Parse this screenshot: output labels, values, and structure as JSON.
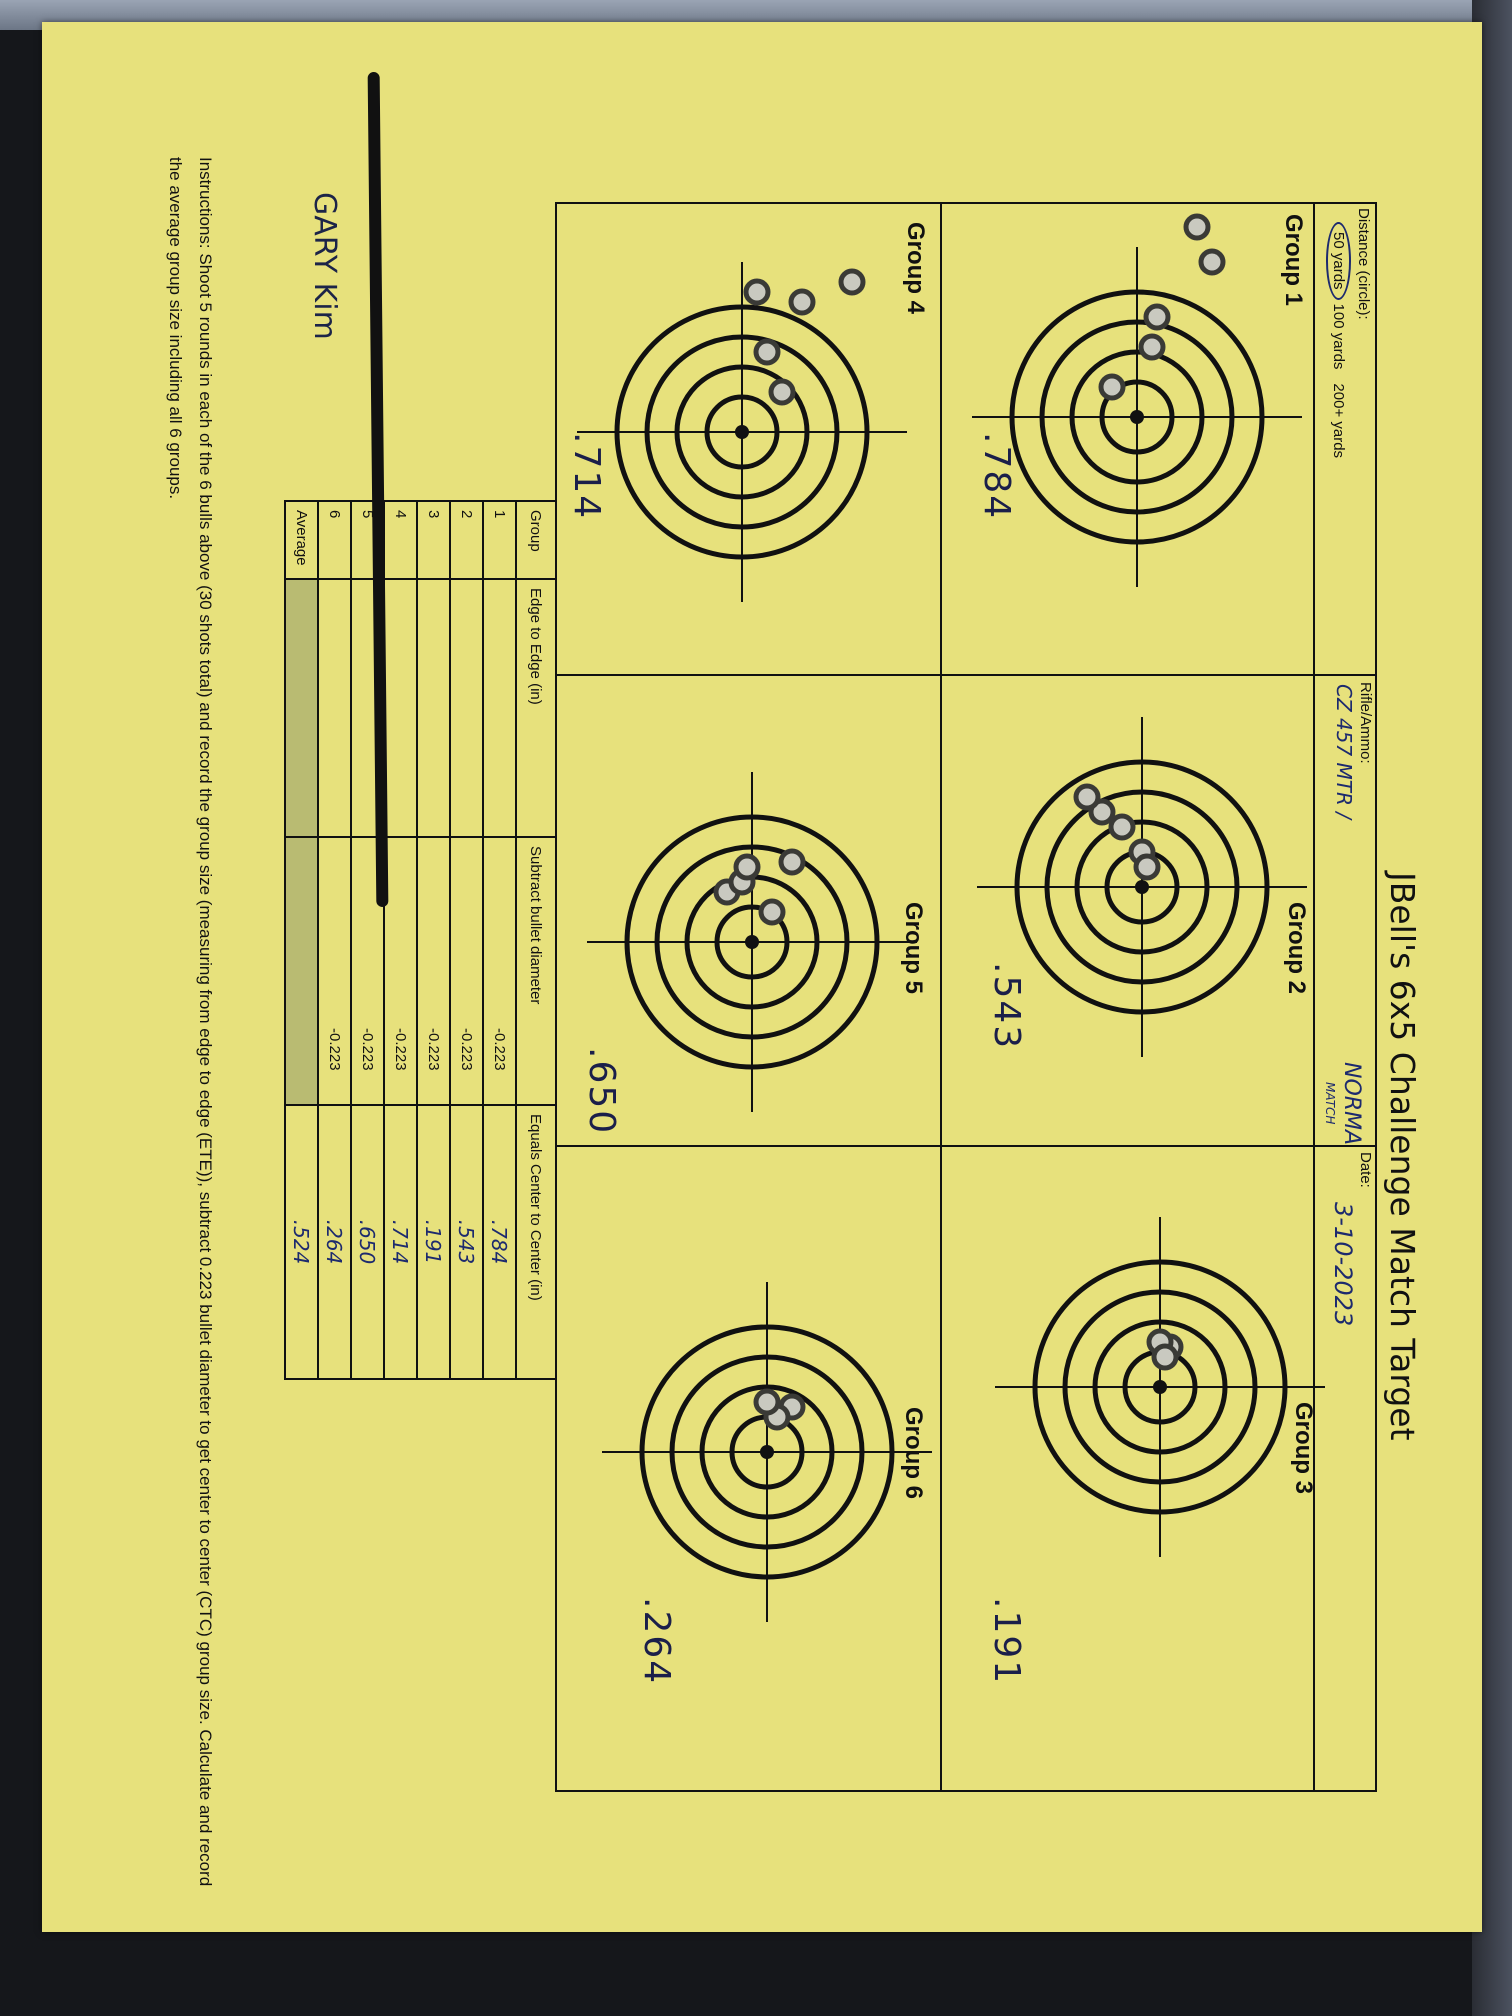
{
  "title": "JBell's 6x5 Challenge Match Target",
  "header": {
    "distance_label": "Distance (circle):",
    "distance_options": [
      "50 yards",
      "100 yards",
      "200+ yards"
    ],
    "distance_selected": "50 yards",
    "rifle_label": "Rifle/Ammo:",
    "rifle_value": "CZ 457 MTR /",
    "ammo_value": "NORMA",
    "ammo_sub": "MATCH",
    "date_label": "Date:",
    "date_value": "3-10-2023"
  },
  "groups": [
    {
      "label": "Group 1",
      "ctc": ".784"
    },
    {
      "label": "Group 2",
      "ctc": ".543"
    },
    {
      "label": "Group 3",
      "ctc": ".191"
    },
    {
      "label": "Group 4",
      "ctc": ".714"
    },
    {
      "label": "Group 5",
      "ctc": ".650"
    },
    {
      "label": "Group 6",
      "ctc": ".264"
    }
  ],
  "shooter_name": "GARY Kim",
  "table": {
    "headers": [
      "Group",
      "Edge to Edge (in)",
      "Subtract bullet diameter",
      "Equals Center to Center (in)"
    ],
    "rows": [
      {
        "group": "1",
        "ete": "",
        "sub": "-0.223",
        "ctc": ".784"
      },
      {
        "group": "2",
        "ete": "",
        "sub": "-0.223",
        "ctc": ".543"
      },
      {
        "group": "3",
        "ete": "",
        "sub": "-0.223",
        "ctc": ".191"
      },
      {
        "group": "4",
        "ete": "",
        "sub": "-0.223",
        "ctc": ".714"
      },
      {
        "group": "5",
        "ete": "",
        "sub": "-0.223",
        "ctc": ".650"
      },
      {
        "group": "6",
        "ete": "",
        "sub": "-0.223",
        "ctc": ".264"
      },
      {
        "group": "Average",
        "ete": "",
        "sub": "",
        "ctc": ".524"
      }
    ]
  },
  "instructions": "Instructions: Shoot 5 rounds in each of the 6 bulls above (30 shots total) and record the group size (measuring from edge to edge (ETE)), subtract 0.223 bullet diameter to get center to center (CTC) group size. Calculate and record the average group size including all 6 groups.",
  "colors": {
    "paper": "#e7e17c",
    "ink": "#1d2a6e",
    "background": "#15171b"
  }
}
